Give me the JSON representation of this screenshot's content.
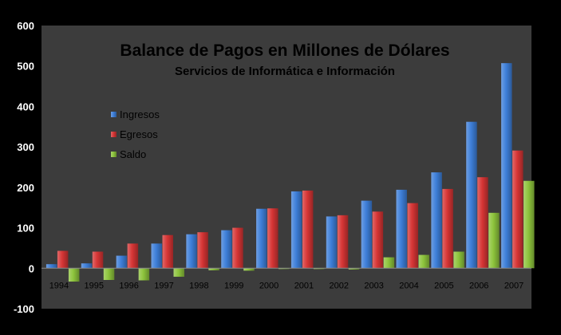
{
  "chart_data": {
    "type": "bar",
    "title": "Balance de Pagos en Millones de Dólares",
    "subtitle": "Servicios de Informática e Información",
    "categories": [
      "1994",
      "1995",
      "1996",
      "1997",
      "1998",
      "1999",
      "2000",
      "2001",
      "2002",
      "2003",
      "2004",
      "2005",
      "2006",
      "2007"
    ],
    "series": [
      {
        "name": "Ingresos",
        "color": "#3e7fd9",
        "values": [
          10,
          12,
          31,
          61,
          84,
          94,
          147,
          190,
          128,
          167,
          194,
          237,
          362,
          507
        ]
      },
      {
        "name": "Egresos",
        "color": "#d63535",
        "values": [
          43,
          41,
          61,
          82,
          89,
          100,
          148,
          192,
          131,
          140,
          161,
          196,
          225,
          291
        ]
      },
      {
        "name": "Saldo",
        "color": "#8dc43c",
        "values": [
          -33,
          -29,
          -30,
          -21,
          -5,
          -6,
          -1,
          -2,
          -3,
          27,
          33,
          41,
          137,
          216
        ]
      }
    ],
    "ylim": [
      -100,
      600
    ],
    "yticks": [
      -100,
      0,
      100,
      200,
      300,
      400,
      500,
      600
    ],
    "grid": false,
    "legend": "left",
    "plot_background": "#3c3c3c",
    "page_background": "#000000",
    "text_color": "#ffffff",
    "label_color": "#000000"
  }
}
